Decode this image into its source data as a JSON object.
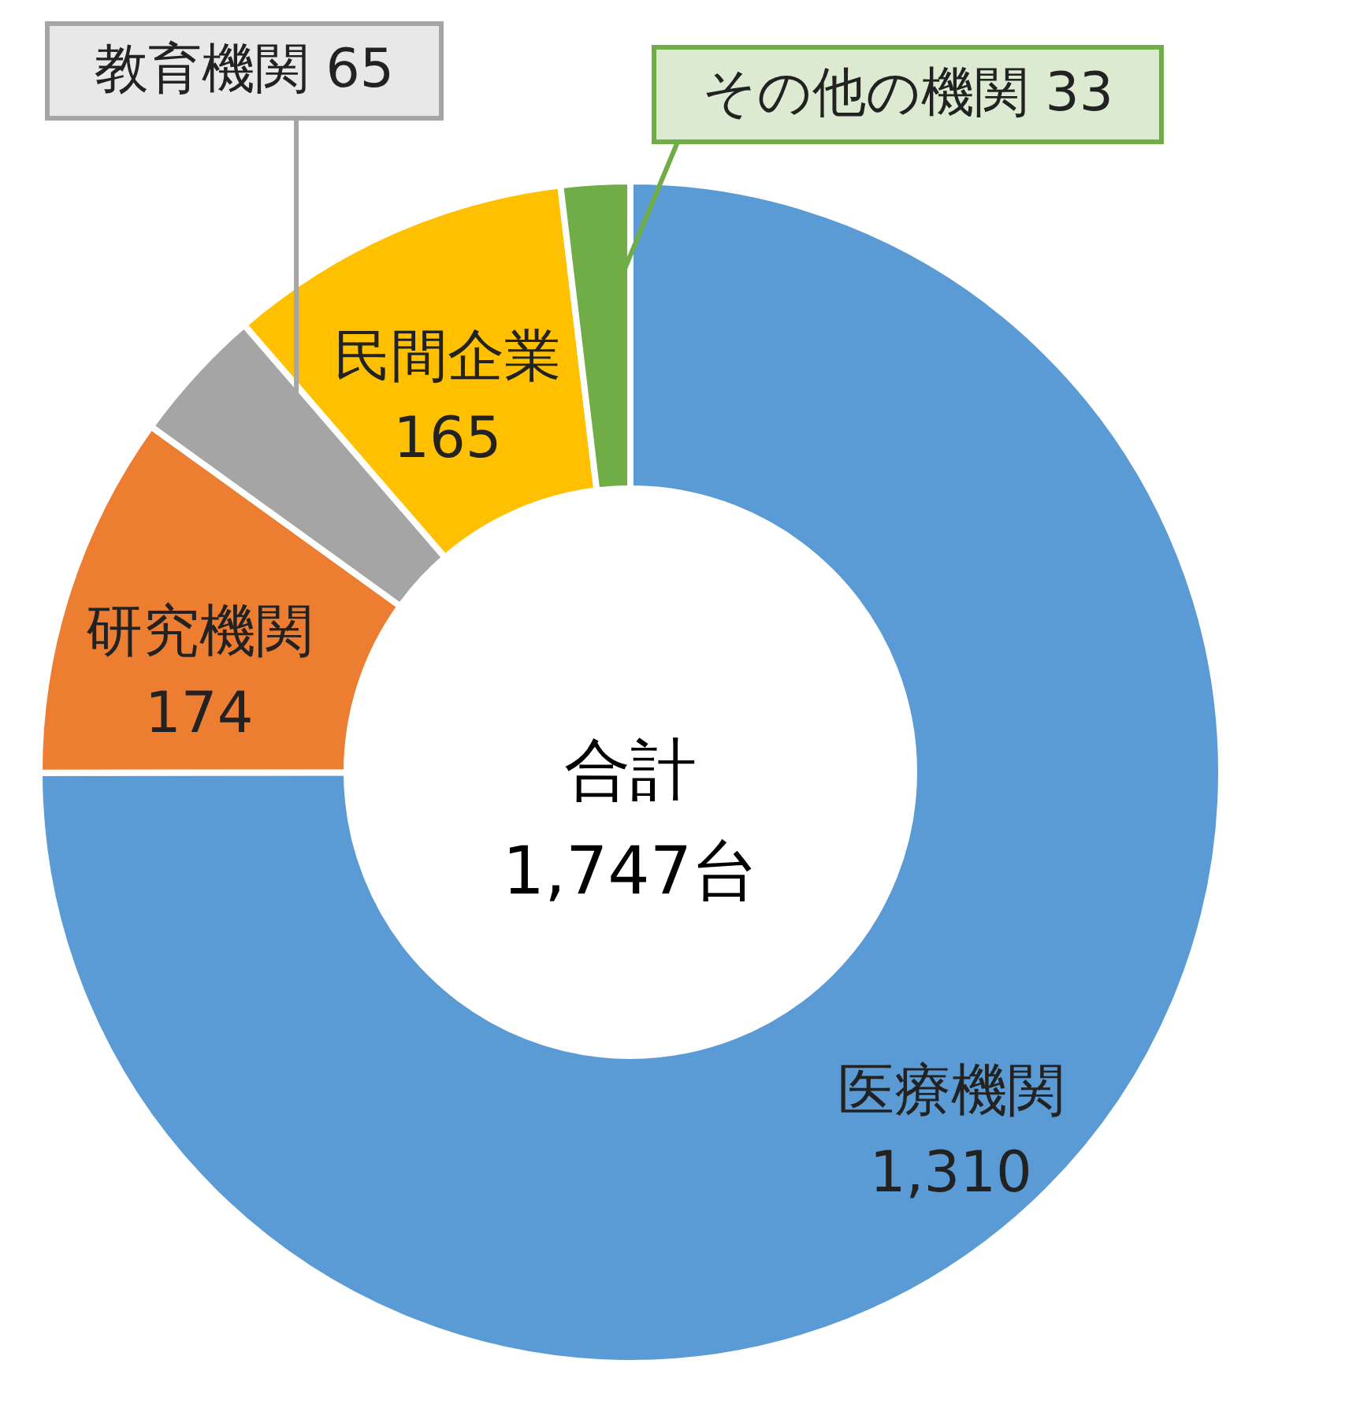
{
  "chart_data": {
    "type": "donut",
    "categories": [
      "医療機関",
      "研究機関",
      "教育機関",
      "民間企業",
      "その他の機関"
    ],
    "values": [
      1310,
      174,
      65,
      165,
      33
    ],
    "colors": [
      "#5b9bd5",
      "#ed7d31",
      "#a5a5a5",
      "#ffc000",
      "#70ad47"
    ],
    "value_labels": [
      "1,310",
      "174",
      "65",
      "165",
      "33"
    ],
    "annotations": [
      "合計",
      "1,747台"
    ]
  }
}
